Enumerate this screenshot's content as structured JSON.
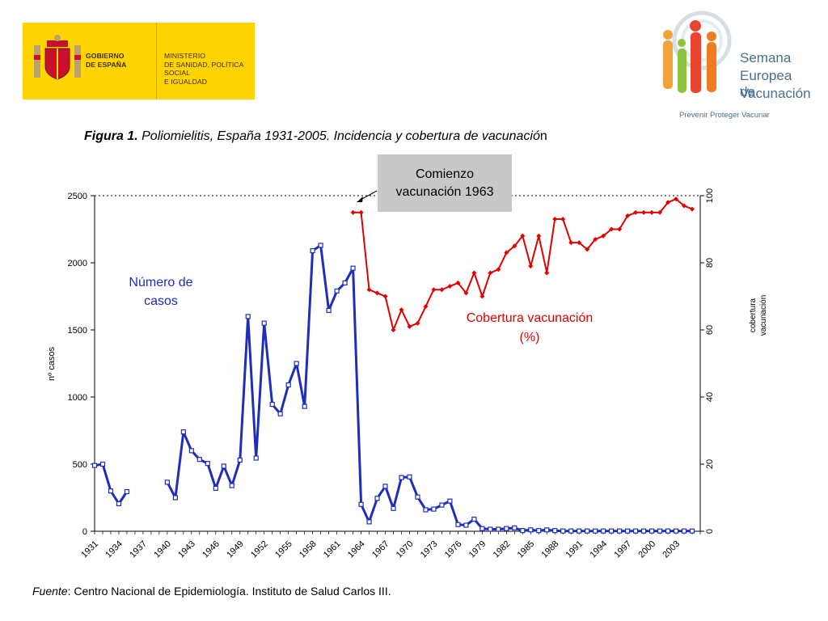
{
  "header": {
    "gov_left": "GOBIERNO\nDE ESPAÑA",
    "gov_right": "MINISTERIO\nDE SANIDAD, POLÍTICA SOCIAL\nE IGUALDAD",
    "logo_title_1": "Semana",
    "logo_title_2": "Europea de",
    "logo_title_3": "Vacunación",
    "logo_slogan": "Prevenir Proteger Vacunar"
  },
  "figure": {
    "title_bold": "Figura 1.",
    "title_rest": " Poliomielitis, España 1931-2005. Incidencia y cobertura de vacunació",
    "title_end": "n",
    "annotation": "Comienzo\nvacunación 1963",
    "label_cases": "Número de\ncasos",
    "label_coverage": "Cobertura vacunación\n(%)",
    "source_italic": "Fuente",
    "source_rest": ": Centro Nacional de Epidemiología. Instituto de Salud Carlos III."
  },
  "colors": {
    "cases": "#1f2dbb",
    "coverage": "#e00000",
    "banner": "#ffd400"
  },
  "chart_data": {
    "type": "line",
    "ylabel_left": "nº casos",
    "ylabel_right": "cobertura vacunación",
    "ylim_left": [
      0,
      2500
    ],
    "ylim_right": [
      0,
      100
    ],
    "y_ticks_left": [
      0,
      500,
      1000,
      1500,
      2000,
      2500
    ],
    "y_ticks_right": [
      0,
      20,
      40,
      60,
      80,
      100
    ],
    "x_tick_labels": [
      "1931",
      "1934",
      "1937",
      "1940",
      "1943",
      "1946",
      "1949",
      "1952",
      "1955",
      "1958",
      "1961",
      "1964",
      "1967",
      "1970",
      "1973",
      "1976",
      "1979",
      "1982",
      "1985",
      "1988",
      "1991",
      "1994",
      "1997",
      "2000",
      "2003"
    ],
    "grid": "dotted line at 2500",
    "series": [
      {
        "name": "Número de casos",
        "axis": "left",
        "segments": [
          [
            [
              1931,
              490
            ],
            [
              1932,
              500
            ],
            [
              1933,
              300
            ],
            [
              1934,
              205
            ],
            [
              1935,
              295
            ]
          ],
          [
            [
              1940,
              365
            ],
            [
              1941,
              250
            ],
            [
              1942,
              740
            ],
            [
              1943,
              600
            ],
            [
              1944,
              535
            ],
            [
              1945,
              505
            ],
            [
              1946,
              320
            ],
            [
              1947,
              485
            ],
            [
              1948,
              340
            ],
            [
              1949,
              530
            ],
            [
              1950,
              1600
            ],
            [
              1951,
              545
            ],
            [
              1952,
              1550
            ],
            [
              1953,
              945
            ],
            [
              1954,
              875
            ],
            [
              1955,
              1090
            ],
            [
              1956,
              1250
            ],
            [
              1957,
              930
            ],
            [
              1958,
              2090
            ],
            [
              1959,
              2130
            ],
            [
              1960,
              1645
            ],
            [
              1961,
              1790
            ],
            [
              1962,
              1850
            ],
            [
              1963,
              1960
            ],
            [
              1964,
              200
            ],
            [
              1965,
              70
            ],
            [
              1966,
              245
            ],
            [
              1967,
              335
            ],
            [
              1968,
              170
            ],
            [
              1969,
              400
            ],
            [
              1970,
              405
            ],
            [
              1971,
              255
            ],
            [
              1972,
              160
            ],
            [
              1973,
              165
            ],
            [
              1974,
              195
            ],
            [
              1975,
              225
            ],
            [
              1976,
              50
            ],
            [
              1977,
              45
            ],
            [
              1978,
              90
            ],
            [
              1979,
              20
            ],
            [
              1980,
              15
            ],
            [
              1981,
              15
            ],
            [
              1982,
              20
            ],
            [
              1983,
              25
            ],
            [
              1984,
              5
            ],
            [
              1985,
              10
            ],
            [
              1986,
              5
            ],
            [
              1987,
              10
            ],
            [
              1988,
              5
            ],
            [
              1989,
              2
            ],
            [
              1990,
              2
            ],
            [
              1991,
              2
            ],
            [
              1992,
              2
            ],
            [
              1993,
              2
            ],
            [
              1994,
              2
            ],
            [
              1995,
              2
            ],
            [
              1996,
              2
            ],
            [
              1997,
              2
            ],
            [
              1998,
              2
            ],
            [
              1999,
              2
            ],
            [
              2000,
              2
            ],
            [
              2001,
              2
            ],
            [
              2002,
              2
            ],
            [
              2003,
              2
            ],
            [
              2004,
              2
            ],
            [
              2005,
              2
            ]
          ]
        ]
      },
      {
        "name": "Cobertura vacunación (%)",
        "axis": "right",
        "segments": [
          [
            [
              1963,
              95
            ],
            [
              1964,
              95
            ],
            [
              1965,
              72
            ],
            [
              1966,
              71
            ],
            [
              1967,
              70
            ],
            [
              1968,
              60
            ],
            [
              1969,
              66
            ],
            [
              1970,
              61
            ],
            [
              1971,
              62
            ],
            [
              1972,
              67
            ],
            [
              1973,
              72
            ],
            [
              1974,
              72
            ],
            [
              1975,
              73
            ],
            [
              1976,
              74
            ],
            [
              1977,
              71
            ],
            [
              1978,
              77
            ],
            [
              1979,
              70
            ],
            [
              1980,
              77
            ],
            [
              1981,
              78
            ],
            [
              1982,
              83
            ],
            [
              1983,
              85
            ],
            [
              1984,
              88
            ],
            [
              1985,
              79
            ],
            [
              1986,
              88
            ],
            [
              1987,
              77
            ],
            [
              1988,
              93
            ],
            [
              1989,
              93
            ],
            [
              1990,
              86
            ],
            [
              1991,
              86
            ],
            [
              1992,
              84
            ],
            [
              1993,
              87
            ],
            [
              1994,
              88
            ],
            [
              1995,
              90
            ],
            [
              1996,
              90
            ],
            [
              1997,
              94
            ],
            [
              1998,
              95
            ],
            [
              1999,
              95
            ],
            [
              2000,
              95
            ],
            [
              2001,
              95
            ],
            [
              2002,
              98
            ],
            [
              2003,
              99
            ],
            [
              2004,
              97
            ],
            [
              2005,
              96
            ]
          ]
        ]
      }
    ]
  }
}
